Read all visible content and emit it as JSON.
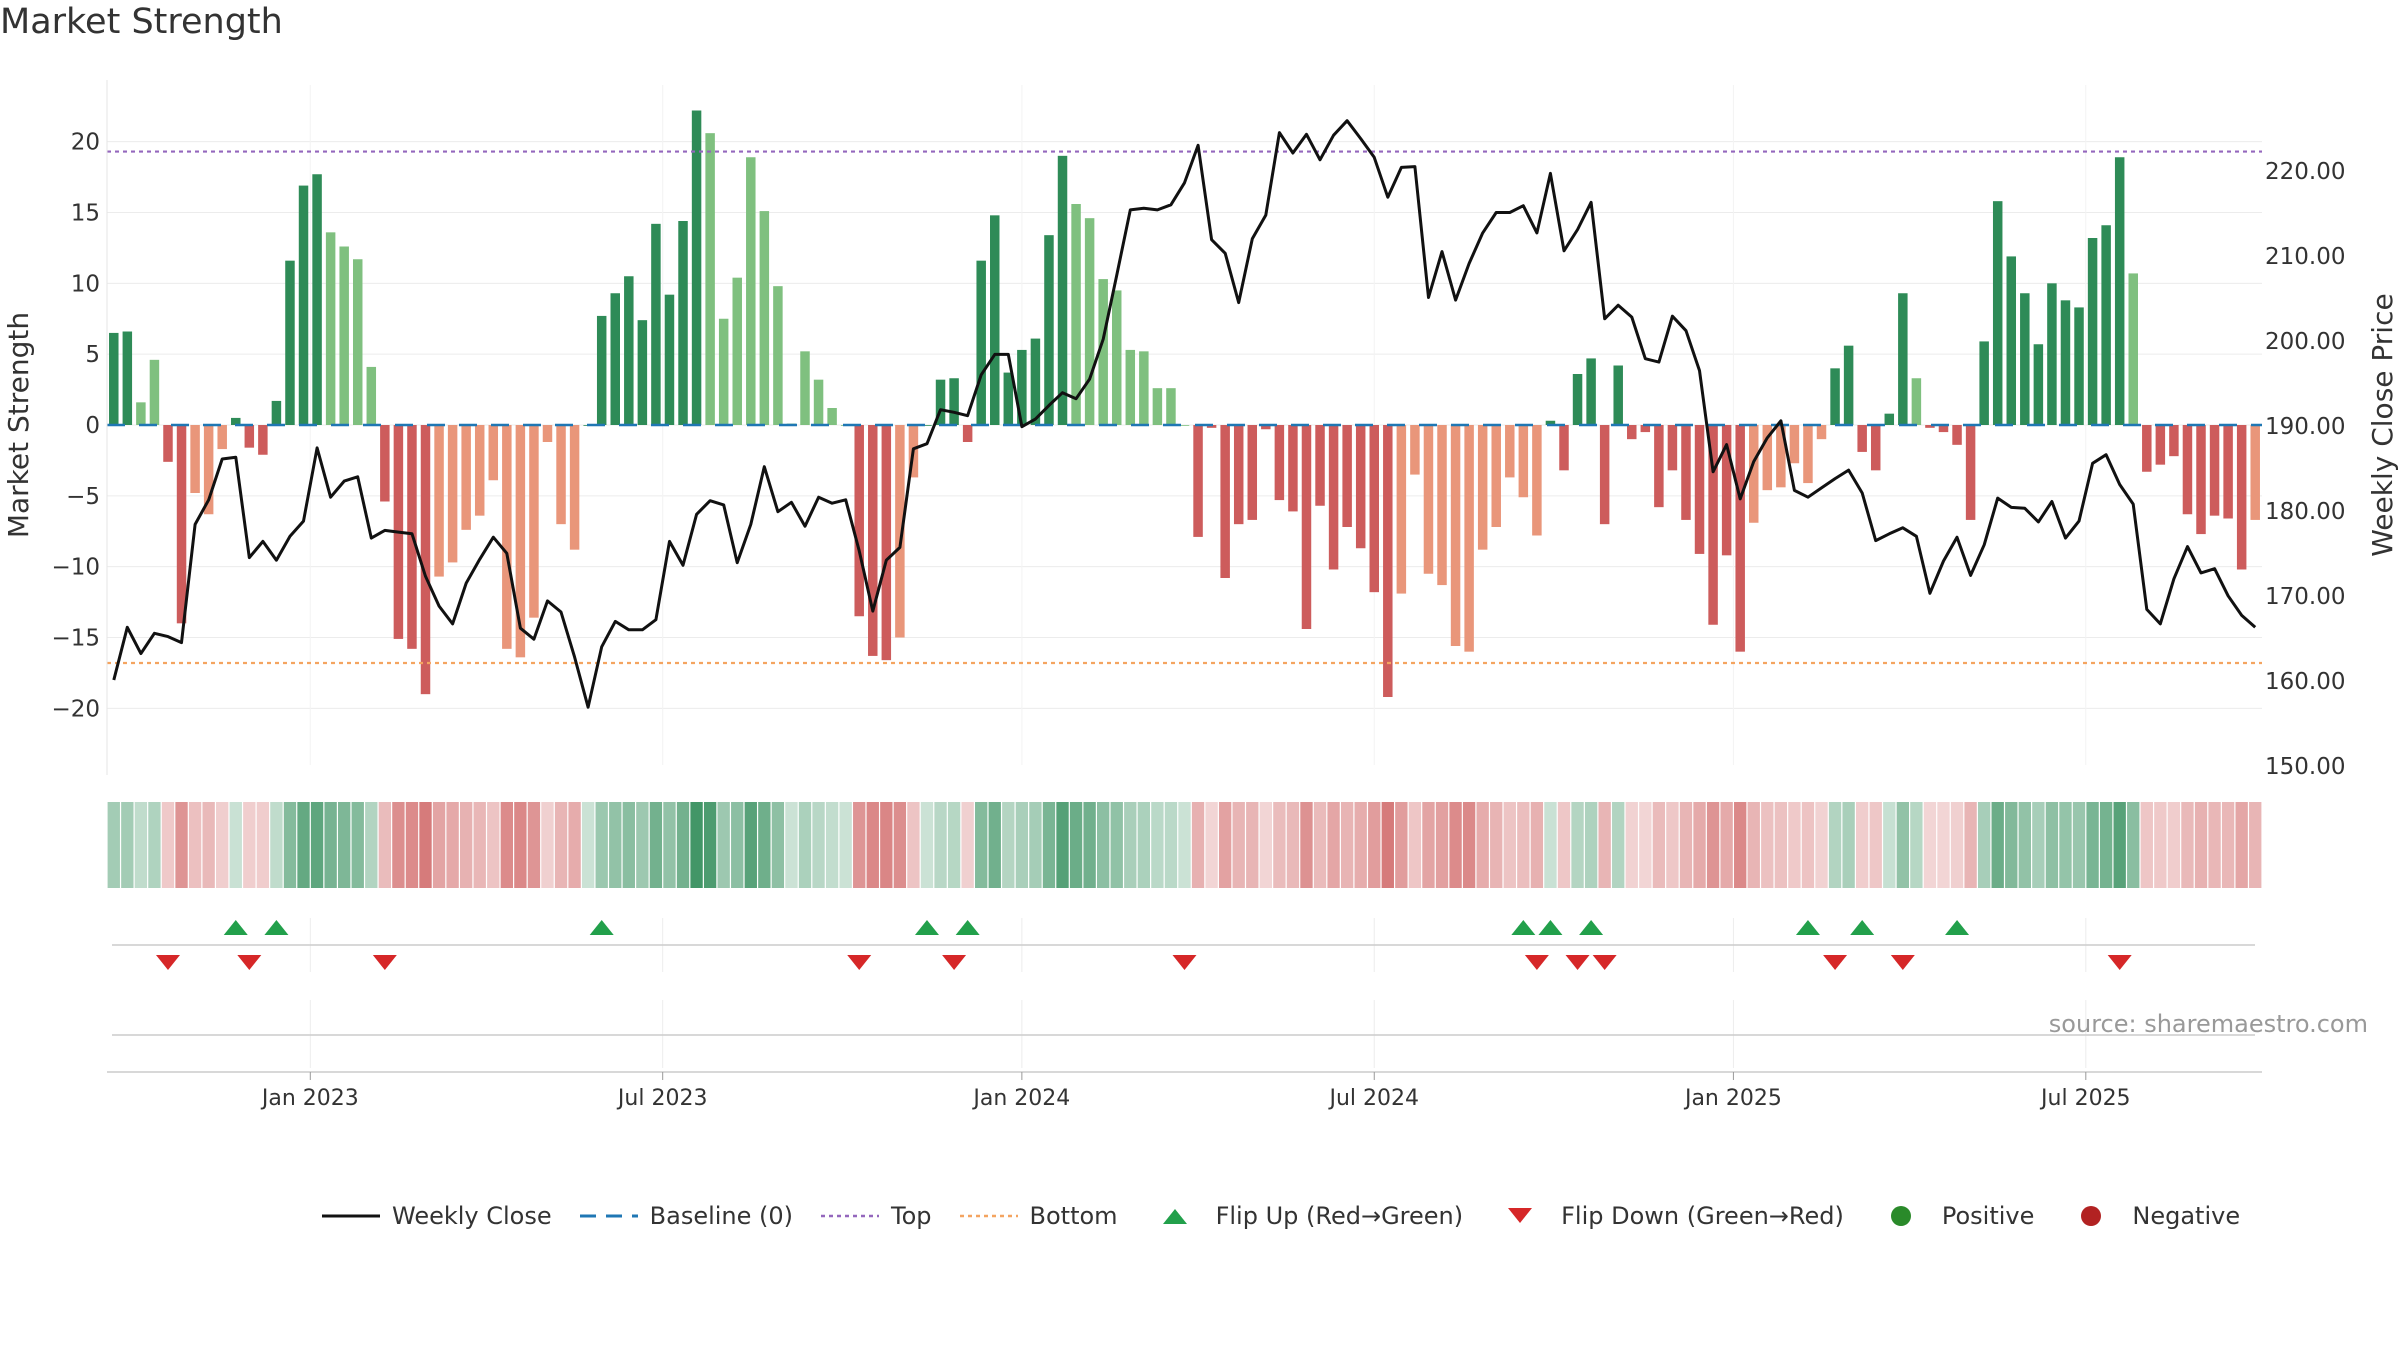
{
  "title": "Market Strength",
  "source": "source: sharemaestro.com",
  "colors": {
    "pos_strong": "#2e8b57",
    "pos_light": "#7fc07f",
    "neg_strong": "#cd5c5c",
    "neg_light": "#e9967a",
    "close_line": "#111111",
    "baseline": "#1f77b4",
    "top_line": "#9467bd",
    "bottom_line": "#f4a460",
    "flip_up": "#22a04b",
    "flip_down": "#d62728",
    "positive_dot": "#2a8a2a",
    "negative_dot": "#b22222"
  },
  "legend": [
    {
      "label": "Weekly Close",
      "symbol": "solid-line"
    },
    {
      "label": "Baseline (0)",
      "symbol": "dashed-line"
    },
    {
      "label": "Top",
      "symbol": "dotted-purple"
    },
    {
      "label": "Bottom",
      "symbol": "dotted-orange"
    },
    {
      "label": "Flip Up (Red→Green)",
      "symbol": "triangle-up"
    },
    {
      "label": "Flip Down (Green→Red)",
      "symbol": "triangle-down"
    },
    {
      "label": "Positive",
      "symbol": "dot-green"
    },
    {
      "label": "Negative",
      "symbol": "dot-red"
    }
  ],
  "chart_data": {
    "type": "bar",
    "title": "Market Strength",
    "ylabel": "Market Strength",
    "y2label": "Weekly Close Price",
    "ylim": [
      -24,
      24
    ],
    "y2lim": [
      150,
      230
    ],
    "yticks": [
      20,
      15,
      10,
      5,
      0,
      -5,
      -10,
      -15,
      -20
    ],
    "yticklabels": [
      "20",
      "15",
      "10",
      "5",
      "0",
      "−5",
      "−10",
      "−15",
      "−20"
    ],
    "y2ticks": [
      220,
      210,
      200,
      190,
      180,
      170,
      160,
      150
    ],
    "y2ticklabels": [
      "220.00",
      "210.00",
      "200.00",
      "190.00",
      "180.00",
      "170.00",
      "160.00",
      "150.00"
    ],
    "xticklabels": [
      "Jan 2023",
      "Jul 2023",
      "Jan 2024",
      "Jul 2024",
      "Jan 2025",
      "Jul 2025"
    ],
    "xtick_weeks": [
      14.5,
      40.5,
      67,
      93,
      119.5,
      145.5
    ],
    "top_level": 19.3,
    "bottom_level": -16.8,
    "baseline": 0,
    "strength": [
      6.5,
      6.6,
      1.6,
      4.6,
      -2.6,
      -14,
      -4.8,
      -6.3,
      -1.7,
      0.5,
      -1.6,
      -2.1,
      1.7,
      11.6,
      16.9,
      17.7,
      13.6,
      12.6,
      11.7,
      4.1,
      -5.4,
      -15.1,
      -15.8,
      -19,
      -10.7,
      -9.7,
      -7.4,
      -6.4,
      -3.9,
      -15.8,
      -16.4,
      -13.6,
      -1.2,
      -7,
      -8.8,
      0,
      7.7,
      9.3,
      10.5,
      7.4,
      14.2,
      9.2,
      14.4,
      22.2,
      20.6,
      7.5,
      10.4,
      18.9,
      15.1,
      9.8,
      0.1,
      5.2,
      3.2,
      1.2,
      0,
      -13.5,
      -16.3,
      -16.6,
      -15,
      -3.7,
      0,
      3.2,
      3.3,
      -1.2,
      11.6,
      14.8,
      3.7,
      5.3,
      6.1,
      13.4,
      19,
      15.6,
      14.6,
      10.3,
      9.5,
      5.3,
      5.2,
      2.6,
      2.6,
      0,
      -7.9,
      -0.2,
      -10.8,
      -7,
      -6.7,
      -0.3,
      -5.3,
      -6.1,
      -14.4,
      -5.7,
      -10.2,
      -7.2,
      -8.7,
      -11.8,
      -19.2,
      -11.9,
      -3.5,
      -10.5,
      -11.3,
      -15.6,
      -16,
      -8.8,
      -7.2,
      -3.7,
      -5.1,
      -7.8,
      0.3,
      -3.2,
      3.6,
      4.7,
      -7,
      4.2,
      -1,
      -0.5,
      -5.8,
      -3.2,
      -6.7,
      -9.1,
      -14.1,
      -9.2,
      -16,
      -6.9,
      -4.6,
      -4.4,
      -2.7,
      -4.1,
      -1,
      4,
      5.6,
      -1.9,
      -3.2,
      0.8,
      9.3,
      3.3,
      -0.2,
      -0.5,
      -1.4,
      -6.7,
      5.9,
      15.8,
      11.9,
      9.3,
      5.7,
      10,
      8.8,
      8.3,
      13.2,
      14.1,
      18.9,
      10.7,
      -3.3,
      -2.8,
      -2.2,
      -6.3,
      -7.7,
      -6.4,
      -6.6,
      -10.2,
      -6.7
    ],
    "close": [
      160,
      166.2,
      163.1,
      165.5,
      165.1,
      164.4,
      178.3,
      181.2,
      186,
      186.2,
      174.4,
      176.3,
      174.1,
      176.9,
      178.7,
      187.3,
      181.5,
      183.4,
      183.9,
      176.7,
      177.6,
      177.4,
      177.2,
      172.2,
      168.7,
      166.6,
      171.4,
      174.2,
      176.8,
      174.9,
      166.1,
      164.8,
      169.3,
      168,
      162.7,
      156.8,
      163.9,
      166.9,
      165.9,
      165.9,
      167.1,
      176.3,
      173.5,
      179.5,
      181.1,
      180.6,
      173.8,
      178.3,
      185.1,
      179.8,
      180.9,
      178.1,
      181.5,
      180.8,
      181.2,
      175.2,
      168.1,
      174.1,
      175.6,
      187.2,
      187.8,
      191.8,
      191.5,
      191.1,
      195.9,
      198.3,
      198.3,
      189.8,
      190.7,
      192.3,
      193.8,
      193.1,
      195.4,
      200.1,
      207.6,
      215.3,
      215.5,
      215.3,
      215.9,
      218.5,
      222.9,
      211.8,
      210.2,
      204.4,
      211.9,
      214.7,
      224.4,
      222,
      224.2,
      221.2,
      224.1,
      225.8,
      223.7,
      221.5,
      216.8,
      220.3,
      220.4,
      205,
      210.4,
      204.7,
      209,
      212.6,
      215,
      215,
      215.8,
      212.6,
      219.6,
      210.5,
      213,
      216.2,
      202.5,
      204.1,
      202.7,
      197.8,
      197.4,
      202.8,
      201.1,
      196.4,
      184.5,
      187.7,
      181.3,
      185.7,
      188.5,
      190.5,
      182.3,
      181.5,
      182.6,
      183.7,
      184.7,
      182,
      176.4,
      177.2,
      177.9,
      176.9,
      170.2,
      174,
      176.8,
      172.3,
      175.9,
      181.4,
      180.3,
      180.2,
      178.6,
      181,
      176.7,
      178.7,
      185.5,
      186.5,
      183,
      180.7,
      168.3,
      166.6,
      171.9,
      175.7,
      172.6,
      173.1,
      169.9,
      167.6,
      166.2
    ],
    "flip_up_weeks": [
      9,
      12,
      36,
      60,
      63,
      104,
      106,
      109,
      125,
      129,
      136
    ],
    "flip_down_weeks": [
      4,
      10,
      20,
      55,
      62,
      79,
      105,
      108,
      110,
      127,
      132,
      148
    ]
  }
}
